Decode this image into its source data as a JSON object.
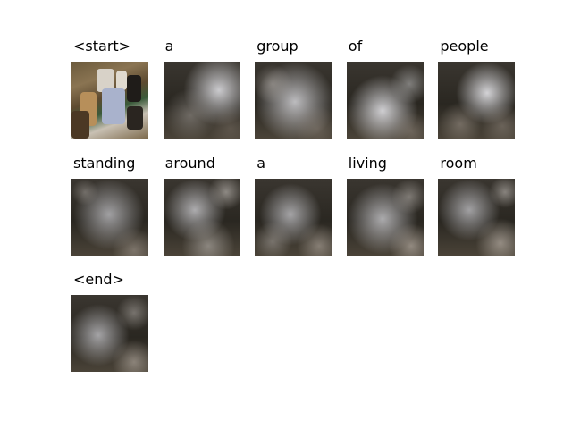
{
  "frames": [
    {
      "word": "<start>",
      "kind": "photo",
      "icon": "photo-thumbnail"
    },
    {
      "word": "a",
      "kind": "attention",
      "icon": "attention-heatmap"
    },
    {
      "word": "group",
      "kind": "attention",
      "icon": "attention-heatmap"
    },
    {
      "word": "of",
      "kind": "attention",
      "icon": "attention-heatmap"
    },
    {
      "word": "people",
      "kind": "attention",
      "icon": "attention-heatmap"
    },
    {
      "word": "standing",
      "kind": "attention",
      "icon": "attention-heatmap"
    },
    {
      "word": "around",
      "kind": "attention",
      "icon": "attention-heatmap"
    },
    {
      "word": "a",
      "kind": "attention",
      "icon": "attention-heatmap"
    },
    {
      "word": "living",
      "kind": "attention",
      "icon": "attention-heatmap"
    },
    {
      "word": "room",
      "kind": "attention",
      "icon": "attention-heatmap"
    },
    {
      "word": "<end>",
      "kind": "attention",
      "icon": "attention-heatmap"
    }
  ]
}
